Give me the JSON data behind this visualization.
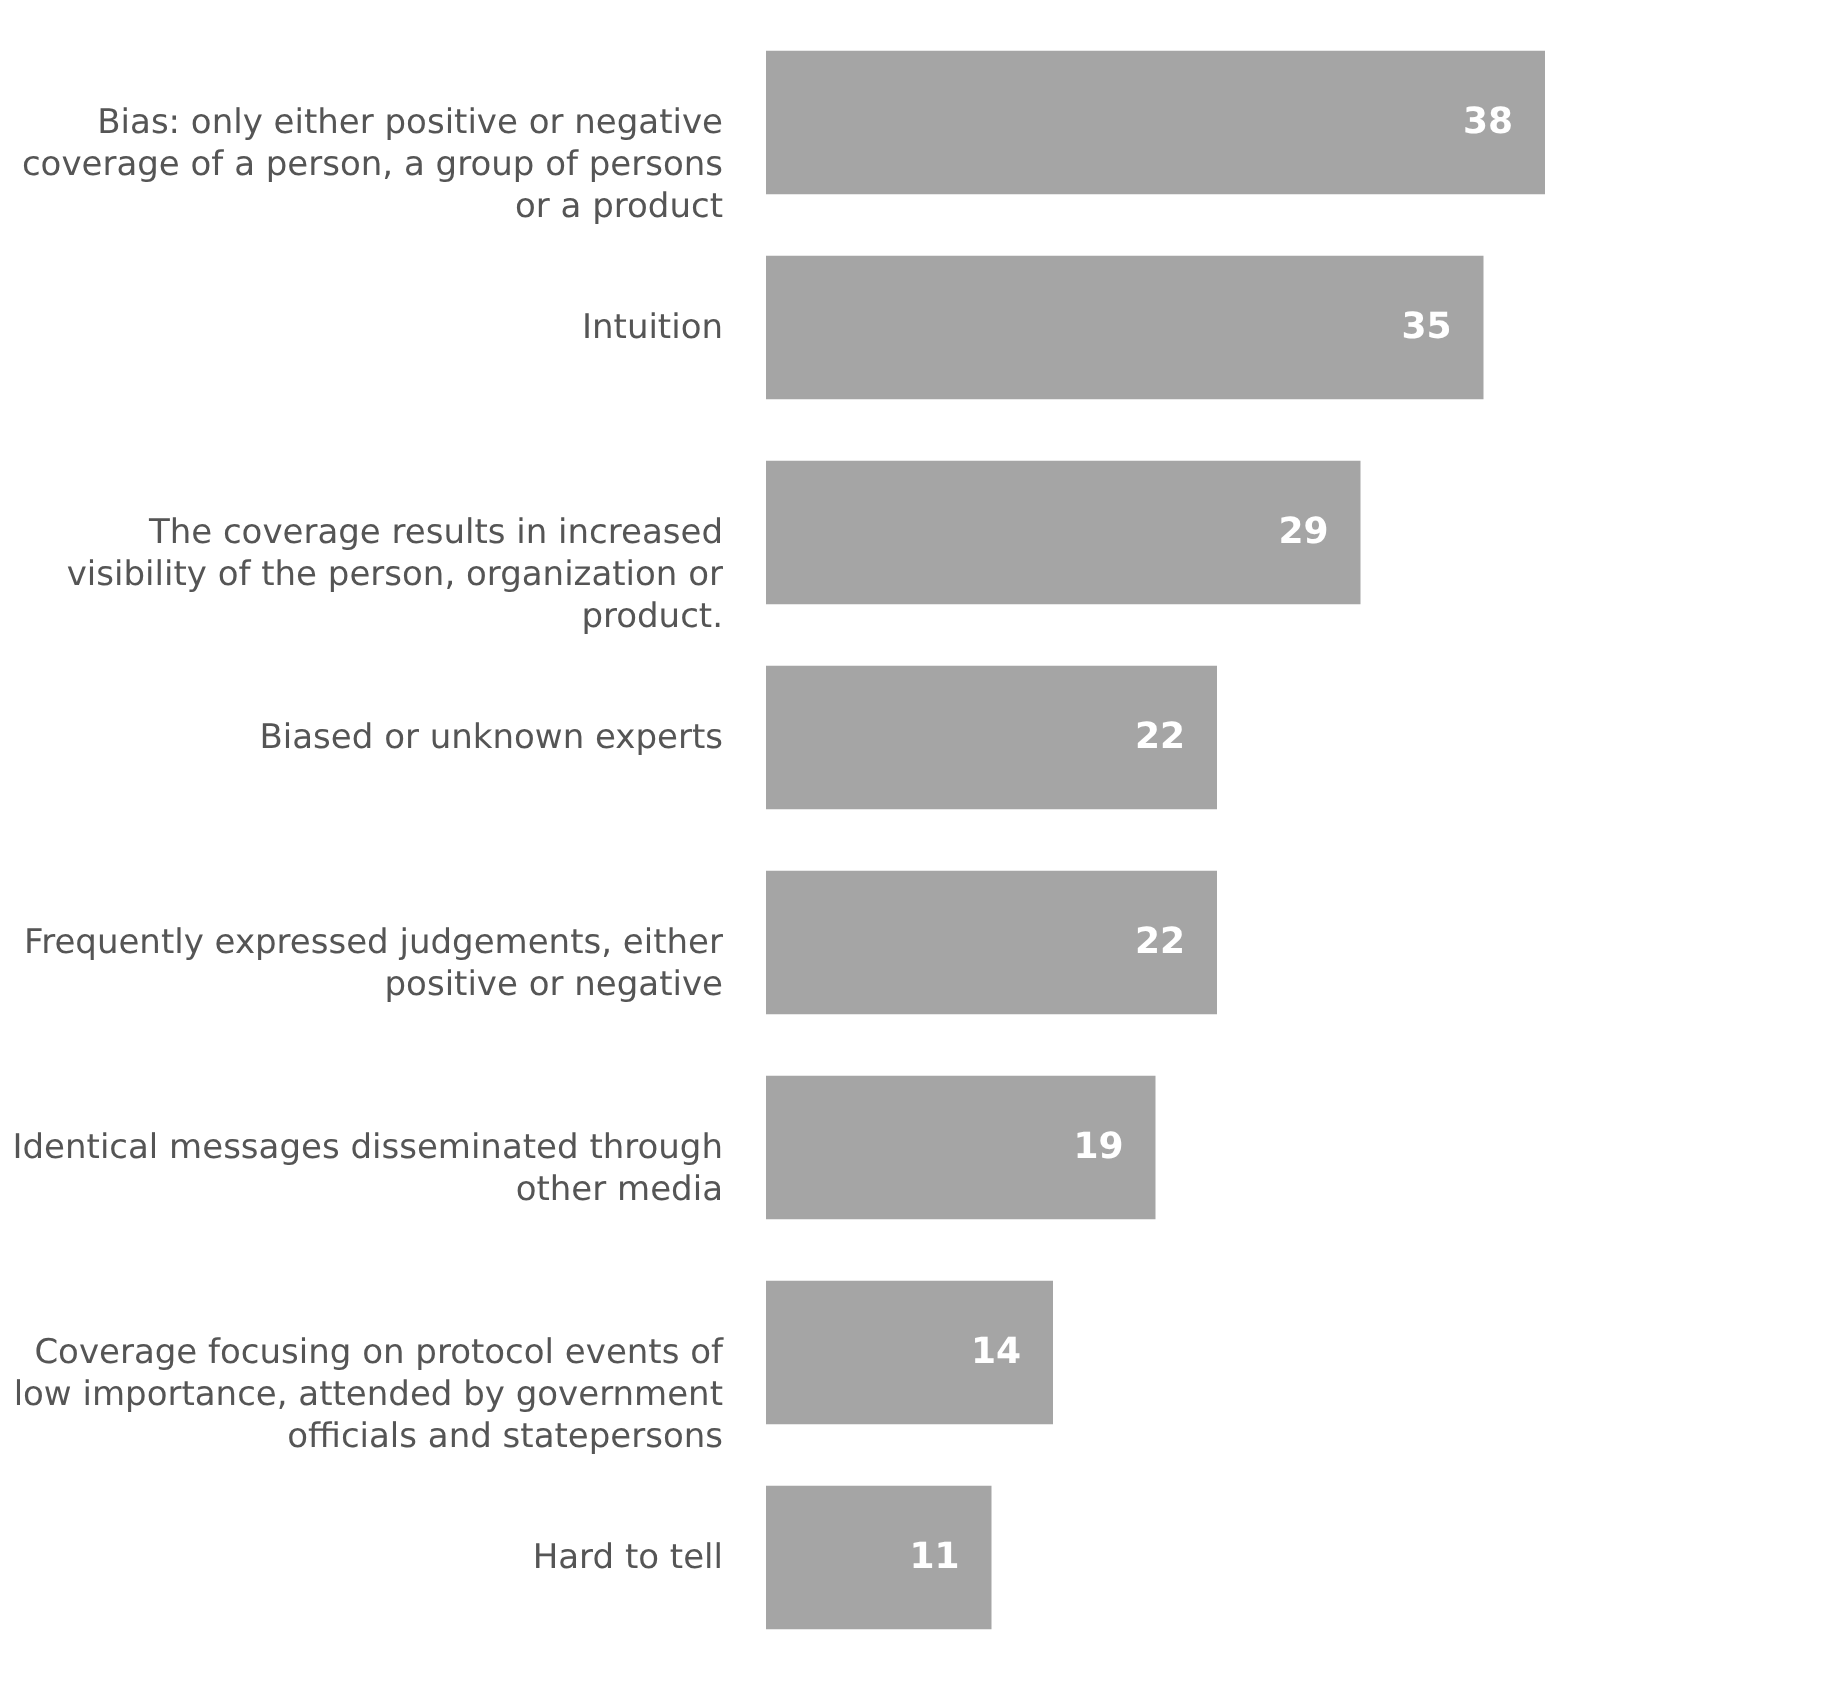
{
  "chart_data": {
    "type": "bar",
    "orientation": "horizontal",
    "data_labels": true,
    "categories": [
      "Bias: only either positive or negative coverage of a person, a group of persons or a product",
      "Intuition",
      "The coverage results in increased visibility of the person, organization or product.",
      "Biased or unknown experts",
      "Frequently expressed judgements, either positive or negative",
      "Identical messages disseminated through other media",
      "Coverage focusing on protocol events of low importance, attended by government officials and statepersons",
      "Hard to tell"
    ],
    "values": [
      38,
      35,
      29,
      22,
      22,
      19,
      14,
      11
    ],
    "color": "#a5a5a5"
  }
}
